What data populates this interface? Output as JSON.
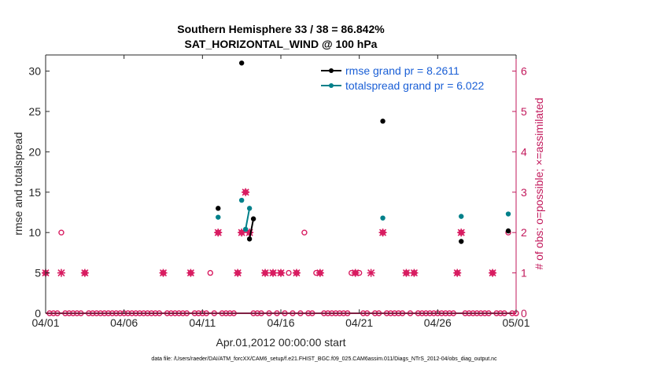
{
  "chart_data": {
    "type": "scatter",
    "title_line1": "Southern Hemisphere 33 / 38 = 86.842%",
    "title_line2": "SAT_HORIZONTAL_WIND @ 100 hPa",
    "xlabel": "Apr.01,2012 00:00:00 start",
    "ylabel_left": "rmse and totalspread",
    "ylabel_right": "# of obs: o=possible; ×=assimilated",
    "x_unit": "days since 04/01 00:00",
    "xlim": [
      0,
      30
    ],
    "ylim_left": [
      0,
      32
    ],
    "ylim_right": [
      0,
      6.4
    ],
    "x_ticks": [
      {
        "value": 0,
        "label": "04/01"
      },
      {
        "value": 5,
        "label": "04/06"
      },
      {
        "value": 10,
        "label": "04/11"
      },
      {
        "value": 15,
        "label": "04/16"
      },
      {
        "value": 20,
        "label": "04/21"
      },
      {
        "value": 25,
        "label": "04/26"
      },
      {
        "value": 30,
        "label": "05/01"
      }
    ],
    "y_ticks_left": [
      0,
      5,
      10,
      15,
      20,
      25,
      30
    ],
    "y_ticks_right": [
      0,
      1,
      2,
      3,
      4,
      5,
      6
    ],
    "legend": [
      {
        "label": "rmse grand pr = 8.2611",
        "color": "#000000"
      },
      {
        "label": "totalspread grand pr = 6.022",
        "color": "#00808a"
      }
    ],
    "colors": {
      "rmse": "#000000",
      "spread": "#00808a",
      "obs": "#d81b60",
      "legend_text": "#1a5fd6",
      "right_axis": "#c2185b"
    },
    "series": [
      {
        "name": "rmse",
        "axis": "left",
        "segments": [
          [
            [
              11.0,
              13.0
            ]
          ],
          [
            [
              12.5,
              31.0
            ]
          ],
          [
            [
              13.0,
              9.2
            ],
            [
              13.25,
              11.7
            ]
          ],
          [
            [
              21.5,
              23.8
            ]
          ],
          [
            [
              26.5,
              8.9
            ]
          ],
          [
            [
              29.5,
              10.2
            ]
          ]
        ]
      },
      {
        "name": "totalspread",
        "axis": "left",
        "segments": [
          [
            [
              11.0,
              11.9
            ]
          ],
          [
            [
              12.5,
              14.0
            ]
          ],
          [
            [
              12.75,
              10.4
            ],
            [
              13.0,
              13.0
            ]
          ],
          [
            [
              21.5,
              11.8
            ]
          ],
          [
            [
              26.5,
              12.0
            ]
          ],
          [
            [
              29.5,
              12.3
            ]
          ]
        ]
      },
      {
        "name": "obs_possible",
        "axis": "right",
        "marker": "o",
        "points": [
          [
            0,
            1
          ],
          [
            1,
            2
          ],
          [
            2.5,
            1
          ],
          [
            7.5,
            1
          ],
          [
            9.25,
            1
          ],
          [
            10.5,
            1
          ],
          [
            11,
            2
          ],
          [
            12.25,
            1
          ],
          [
            12.5,
            2
          ],
          [
            12.75,
            3
          ],
          [
            13,
            2
          ],
          [
            14,
            1
          ],
          [
            14.5,
            1
          ],
          [
            15,
            1
          ],
          [
            15.5,
            1
          ],
          [
            16,
            1
          ],
          [
            16.5,
            2
          ],
          [
            17.25,
            1
          ],
          [
            17.5,
            1
          ],
          [
            19.5,
            1
          ],
          [
            19.75,
            1
          ],
          [
            20,
            1
          ],
          [
            21.5,
            2
          ],
          [
            23,
            1
          ],
          [
            23.5,
            1
          ],
          [
            26.25,
            1
          ],
          [
            26.5,
            2
          ],
          [
            28.5,
            1
          ],
          [
            29.5,
            2
          ]
        ]
      },
      {
        "name": "obs_assimilated",
        "axis": "right",
        "marker": "x",
        "points": [
          [
            0,
            1
          ],
          [
            1,
            1
          ],
          [
            2.5,
            1
          ],
          [
            7.5,
            1
          ],
          [
            9.25,
            1
          ],
          [
            11,
            2
          ],
          [
            12.25,
            1
          ],
          [
            12.5,
            2
          ],
          [
            12.75,
            3
          ],
          [
            13,
            2
          ],
          [
            14,
            1
          ],
          [
            14.5,
            1
          ],
          [
            15,
            1
          ],
          [
            16,
            1
          ],
          [
            17.5,
            1
          ],
          [
            19.75,
            1
          ],
          [
            20.75,
            1
          ],
          [
            21.5,
            2
          ],
          [
            23,
            1
          ],
          [
            23.5,
            1
          ],
          [
            26.25,
            1
          ],
          [
            26.5,
            2
          ],
          [
            28.5,
            1
          ]
        ]
      }
    ]
  },
  "footer": "data file: /Users/raeder/DAI/ATM_forcXX/CAM6_setup/f.e21.FHIST_BGC.f09_025.CAM6assim.011/Diags_NTrS_2012-04/obs_diag_output.nc"
}
